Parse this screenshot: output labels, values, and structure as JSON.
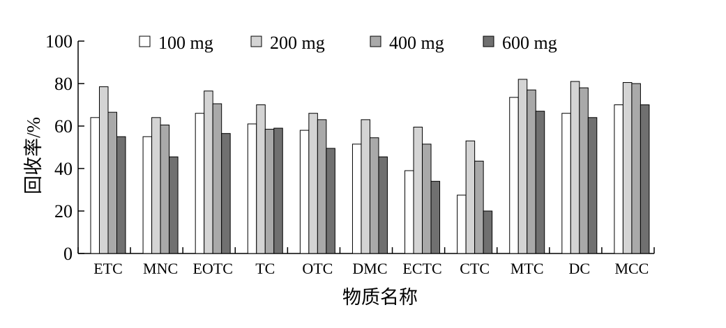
{
  "chart_data": {
    "type": "bar",
    "title": "",
    "xlabel": "物质名称",
    "ylabel": "回收率/%",
    "ylim": [
      0,
      100
    ],
    "yticks": [
      0,
      20,
      40,
      60,
      80,
      100
    ],
    "grid": false,
    "legend_position": "top",
    "categories": [
      "ETC",
      "MNC",
      "EOTC",
      "TC",
      "OTC",
      "DMC",
      "ECTC",
      "CTC",
      "MTC",
      "DC",
      "MCC"
    ],
    "series": [
      {
        "name": "100 mg",
        "color": "#ffffff",
        "values": [
          64,
          55,
          66,
          61,
          58,
          51.5,
          39,
          27.5,
          73.5,
          66,
          70
        ]
      },
      {
        "name": "200 mg",
        "color": "#d4d4d4",
        "values": [
          78.5,
          64,
          76.5,
          70,
          66,
          63,
          59.5,
          53,
          82,
          81,
          80.5
        ]
      },
      {
        "name": "400 mg",
        "color": "#a9a9a9",
        "values": [
          66.5,
          60.5,
          70.5,
          58.5,
          63,
          54.5,
          51.5,
          43.5,
          77,
          78,
          80
        ]
      },
      {
        "name": "600 mg",
        "color": "#707070",
        "values": [
          55,
          45.5,
          56.5,
          59,
          49.5,
          45.5,
          34,
          20,
          67,
          64,
          70
        ]
      }
    ]
  }
}
